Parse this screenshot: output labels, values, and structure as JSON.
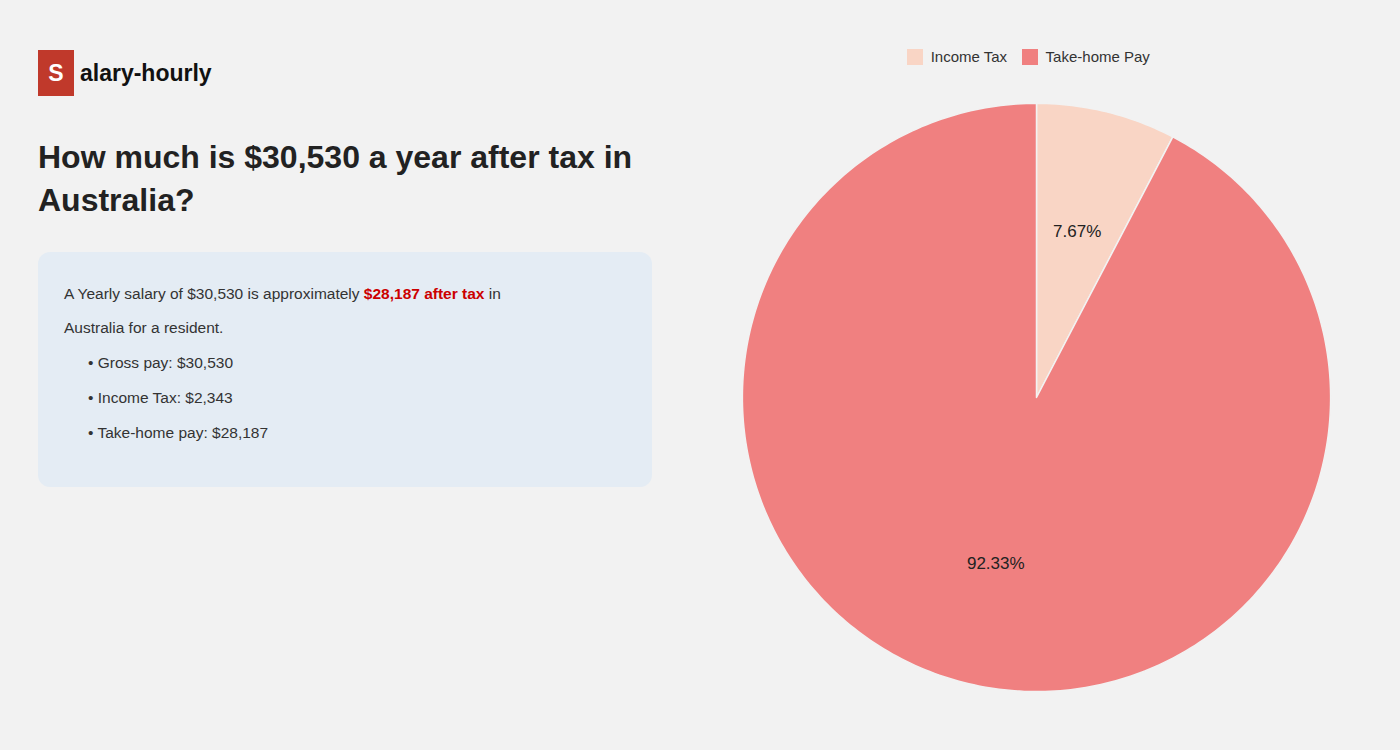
{
  "chart_data": {
    "type": "pie",
    "title": "How much is $30,530 a year after tax in Australia?",
    "categories": [
      "Income Tax",
      "Take-home Pay"
    ],
    "values": [
      7.67,
      92.33
    ],
    "value_labels": [
      "7.67%",
      "92.33%"
    ],
    "colors": [
      "#f9d5c5",
      "#f08080"
    ],
    "data_labels": true,
    "legend": "top",
    "annotations": [
      [
        {
          "text": "S",
          "color": "#c0392b"
        },
        {
          "text": "alary-hourly"
        }
      ],
      [
        {
          "text": "A Yearly salary of $30,530 is approximately "
        },
        {
          "text": "$28,187 after tax",
          "color": "#cc0000"
        },
        {
          "text": " in"
        }
      ],
      [
        {
          "text": "Australia for a resident."
        }
      ],
      [
        {
          "text": "• Gross pay: $30,530"
        }
      ],
      [
        {
          "text": "• Income Tax: $2,343"
        }
      ],
      [
        {
          "text": "• Take-home pay: $28,187"
        }
      ]
    ]
  }
}
